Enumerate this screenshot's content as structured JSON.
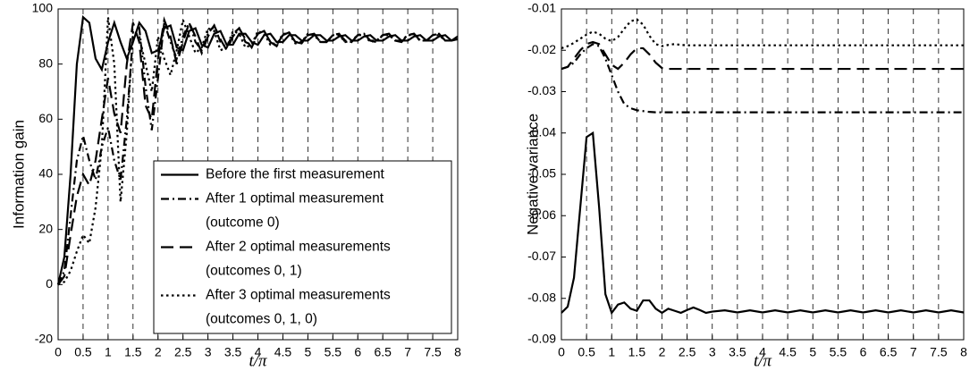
{
  "chart_data": [
    {
      "type": "line",
      "ylabel": "Information gain",
      "xlabel": "t/π",
      "xlim": [
        0,
        8
      ],
      "xticks": [
        0,
        0.5,
        1,
        1.5,
        2,
        2.5,
        3,
        3.5,
        4,
        4.5,
        5,
        5.5,
        6,
        6.5,
        7,
        7.5,
        8
      ],
      "ylim": [
        -20,
        100
      ],
      "yticks": [
        -20,
        0,
        20,
        40,
        60,
        80,
        100
      ],
      "grid": "x",
      "legend": "lower right",
      "x": [
        0,
        0.125,
        0.25,
        0.375,
        0.5,
        0.625,
        0.75,
        0.875,
        1,
        1.125,
        1.25,
        1.375,
        1.5,
        1.625,
        1.75,
        1.875,
        2,
        2.125,
        2.25,
        2.375,
        2.5,
        2.625,
        2.75,
        2.875,
        3,
        3.125,
        3.25,
        3.375,
        3.5,
        3.625,
        3.75,
        3.875,
        4,
        4.125,
        4.25,
        4.375,
        4.5,
        4.625,
        4.75,
        4.875,
        5,
        5.125,
        5.25,
        5.375,
        5.5,
        5.625,
        5.75,
        5.875,
        6,
        6.125,
        6.25,
        6.375,
        6.5,
        6.625,
        6.75,
        6.875,
        7,
        7.125,
        7.25,
        7.375,
        7.5,
        7.625,
        7.75,
        7.875,
        8
      ],
      "series": [
        {
          "name": "Before the first measurement",
          "color": "#000000",
          "dash": "solid",
          "values": [
            0,
            10,
            40,
            80,
            97,
            95,
            82,
            78,
            88,
            95,
            88,
            82,
            88,
            95,
            92,
            84,
            85,
            93,
            94,
            86,
            85,
            92,
            93,
            87,
            86,
            91,
            92,
            87,
            87,
            91,
            91,
            88,
            87,
            90.5,
            91,
            88,
            88,
            90.5,
            90.5,
            88.5,
            88.5,
            90.5,
            90.5,
            88.5,
            88.5,
            90,
            90.5,
            88.5,
            88.5,
            90,
            90.5,
            88.5,
            88.5,
            90,
            90.5,
            88.5,
            88.5,
            90,
            90.5,
            88.5,
            88.5,
            90,
            90.5,
            88.5,
            89
          ]
        },
        {
          "name": "After 1 optimal measurement\n(outcome 0)",
          "color": "#000000",
          "dash": "dashdot",
          "values": [
            0,
            5,
            25,
            45,
            54,
            45,
            38,
            50,
            57,
            45,
            38,
            60,
            90,
            93,
            72,
            56,
            75,
            95,
            88,
            82,
            90,
            95,
            88,
            85,
            91,
            94,
            88,
            86,
            91,
            93,
            88,
            87,
            91,
            92,
            88,
            87,
            90.5,
            91.5,
            88,
            88,
            90.5,
            91,
            88,
            88,
            90.5,
            91,
            88.5,
            88,
            90.5,
            91,
            88.5,
            88.5,
            90.5,
            91,
            88.5,
            88.5,
            90.5,
            91,
            88.5,
            88.5,
            90.5,
            91,
            88.5,
            88.5,
            90
          ]
        },
        {
          "name": "After 2 optimal measurements\n(outcomes 0, 1)",
          "color": "#000000",
          "dash": "dashed",
          "values": [
            0,
            3,
            18,
            32,
            40,
            36,
            45,
            60,
            75,
            62,
            55,
            80,
            95,
            88,
            65,
            60,
            82,
            96,
            90,
            80,
            88,
            95,
            90,
            84,
            90,
            94,
            89,
            85,
            90,
            93,
            89,
            86,
            91,
            92,
            88,
            86.5,
            90.5,
            91.5,
            88,
            87.5,
            90.5,
            91,
            88,
            88,
            90.5,
            91,
            88,
            88,
            90.5,
            91,
            88.5,
            88,
            90.5,
            91,
            88.5,
            88,
            90.5,
            91,
            88.5,
            88.5,
            90.5,
            91,
            88.5,
            88.5,
            89.5
          ]
        },
        {
          "name": "After 3 optimal measurements\n(outcomes 0, 1, 0)",
          "color": "#000000",
          "dash": "dotted",
          "values": [
            0,
            1,
            5,
            12,
            18,
            15,
            28,
            50,
            97,
            80,
            30,
            55,
            92,
            90,
            80,
            70,
            90,
            82,
            76,
            85,
            96,
            90,
            84,
            86,
            93,
            92,
            85,
            86,
            92,
            91,
            86,
            87,
            92,
            91,
            87,
            87,
            91,
            91,
            87.5,
            88,
            91,
            90.5,
            88,
            88,
            90.5,
            90.5,
            88,
            88.5,
            90.5,
            90.5,
            88,
            88.5,
            90.5,
            90.5,
            88.5,
            88.5,
            90.5,
            90.5,
            88.5,
            88.5,
            90.5,
            90.5,
            88.5,
            88.5,
            90
          ]
        }
      ]
    },
    {
      "type": "line",
      "ylabel": "Negative variance",
      "xlabel": "t/π",
      "xlim": [
        0,
        8
      ],
      "xticks": [
        0,
        0.5,
        1,
        1.5,
        2,
        2.5,
        3,
        3.5,
        4,
        4.5,
        5,
        5.5,
        6,
        6.5,
        7,
        7.5,
        8
      ],
      "ylim": [
        -0.09,
        -0.01
      ],
      "yticks": [
        -0.09,
        -0.08,
        -0.07,
        -0.06,
        -0.05,
        -0.04,
        -0.03,
        -0.02,
        -0.01
      ],
      "grid": "x",
      "x": [
        0,
        0.125,
        0.25,
        0.375,
        0.5,
        0.625,
        0.75,
        0.875,
        1,
        1.125,
        1.25,
        1.375,
        1.5,
        1.625,
        1.75,
        1.875,
        2,
        2.125,
        2.25,
        2.375,
        2.5,
        2.625,
        2.75,
        2.875,
        3,
        3.25,
        3.5,
        3.75,
        4,
        4.25,
        4.5,
        4.75,
        5,
        5.25,
        5.5,
        5.75,
        6,
        6.25,
        6.5,
        6.75,
        7,
        7.25,
        7.5,
        7.75,
        8
      ],
      "series": [
        {
          "color": "#000000",
          "dash": "solid",
          "values": [
            -0.0835,
            -0.082,
            -0.075,
            -0.058,
            -0.041,
            -0.04,
            -0.058,
            -0.079,
            -0.0835,
            -0.0815,
            -0.081,
            -0.0825,
            -0.083,
            -0.0805,
            -0.0805,
            -0.0825,
            -0.0835,
            -0.0825,
            -0.083,
            -0.0835,
            -0.0828,
            -0.0822,
            -0.0828,
            -0.0835,
            -0.0832,
            -0.0829,
            -0.0834,
            -0.0829,
            -0.0834,
            -0.0829,
            -0.0834,
            -0.0829,
            -0.0834,
            -0.0829,
            -0.0834,
            -0.0829,
            -0.0834,
            -0.0829,
            -0.0834,
            -0.0829,
            -0.0834,
            -0.0829,
            -0.0834,
            -0.0829,
            -0.0834
          ]
        },
        {
          "color": "#000000",
          "dash": "dashdot",
          "values": [
            -0.0245,
            -0.024,
            -0.023,
            -0.021,
            -0.0195,
            -0.0185,
            -0.019,
            -0.022,
            -0.026,
            -0.03,
            -0.033,
            -0.034,
            -0.0345,
            -0.0347,
            -0.0349,
            -0.035,
            -0.035,
            -0.035,
            -0.035,
            -0.035,
            -0.035,
            -0.035,
            -0.035,
            -0.035,
            -0.035,
            -0.035,
            -0.035,
            -0.035,
            -0.035,
            -0.035,
            -0.035,
            -0.035,
            -0.035,
            -0.035,
            -0.035,
            -0.035,
            -0.035,
            -0.035,
            -0.035,
            -0.035,
            -0.035,
            -0.035,
            -0.035,
            -0.035,
            -0.035
          ]
        },
        {
          "color": "#000000",
          "dash": "dashed",
          "values": [
            -0.0245,
            -0.024,
            -0.022,
            -0.02,
            -0.0185,
            -0.018,
            -0.0185,
            -0.021,
            -0.0235,
            -0.0245,
            -0.023,
            -0.021,
            -0.0195,
            -0.0195,
            -0.021,
            -0.023,
            -0.0243,
            -0.0245,
            -0.0245,
            -0.0245,
            -0.0245,
            -0.0245,
            -0.0245,
            -0.0245,
            -0.0245,
            -0.0245,
            -0.0245,
            -0.0245,
            -0.0245,
            -0.0245,
            -0.0245,
            -0.0245,
            -0.0245,
            -0.0245,
            -0.0245,
            -0.0245,
            -0.0245,
            -0.0245,
            -0.0245,
            -0.0245,
            -0.0245,
            -0.0245,
            -0.0245,
            -0.0245,
            -0.0245
          ]
        },
        {
          "color": "#000000",
          "dash": "dotted",
          "values": [
            -0.0195,
            -0.019,
            -0.0182,
            -0.0172,
            -0.0162,
            -0.0155,
            -0.016,
            -0.0172,
            -0.0178,
            -0.0168,
            -0.0148,
            -0.013,
            -0.0125,
            -0.0138,
            -0.0165,
            -0.0185,
            -0.019,
            -0.0187,
            -0.0185,
            -0.0187,
            -0.0188,
            -0.0188,
            -0.0188,
            -0.0188,
            -0.0188,
            -0.0188,
            -0.0188,
            -0.0188,
            -0.0188,
            -0.0188,
            -0.0188,
            -0.0188,
            -0.0188,
            -0.0188,
            -0.0188,
            -0.0188,
            -0.0188,
            -0.0188,
            -0.0188,
            -0.0188,
            -0.0188,
            -0.0188,
            -0.0188,
            -0.0188,
            -0.0188
          ]
        }
      ]
    }
  ]
}
